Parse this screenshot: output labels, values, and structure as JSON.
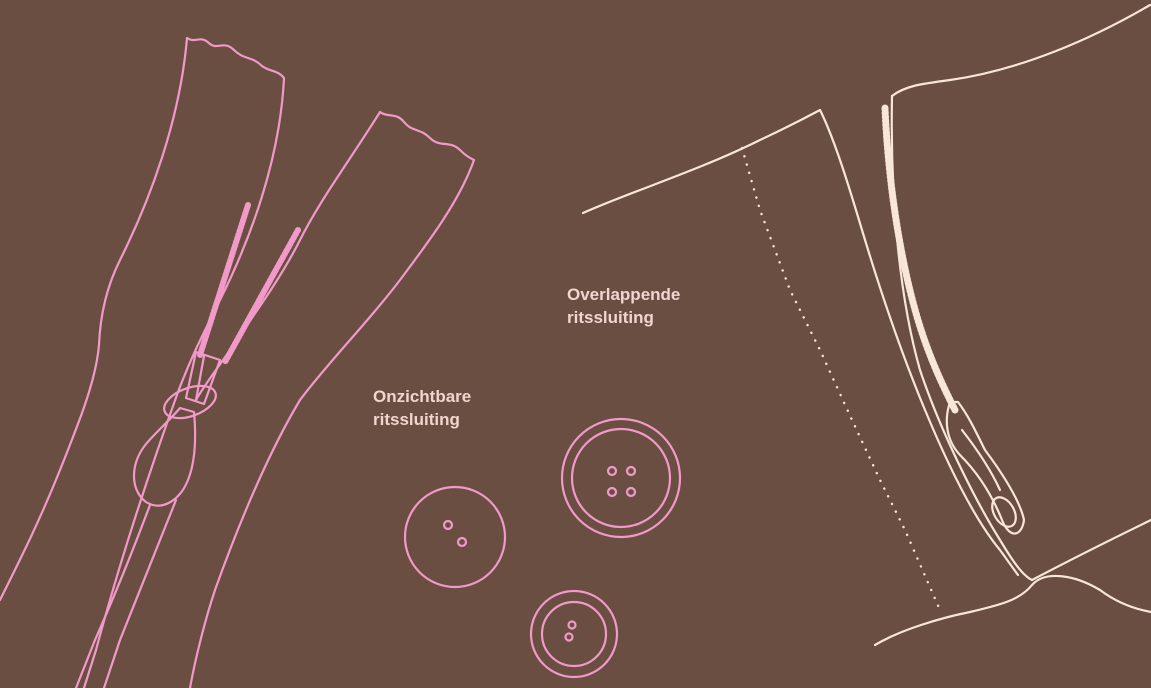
{
  "labels": {
    "invisible_zipper": {
      "line1": "Onzichtbare",
      "line2": "ritssluiting"
    },
    "overlapping_zipper": {
      "line1": "Overlappende",
      "line2": "ritssluiting"
    }
  },
  "colors": {
    "background": "#694e41",
    "pink_line": "#f19ac9",
    "cream_line": "#f8e6d8",
    "label_text": "#f3d4cf"
  },
  "icons": {
    "invisible_zipper": "invisible-zipper-illustration",
    "overlapping_zipper": "lapped-zipper-garment-illustration",
    "buttons": [
      "button-two-hole",
      "button-four-hole",
      "button-small-two-hole"
    ]
  }
}
